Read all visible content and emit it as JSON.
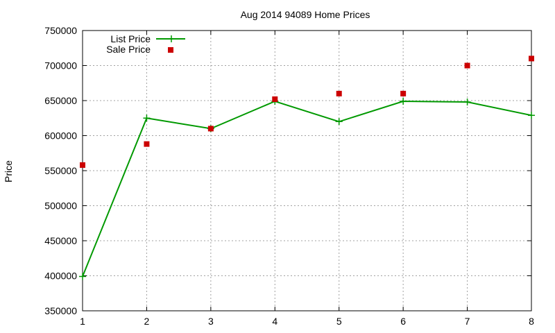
{
  "chart_data": {
    "type": "line",
    "title": "Aug 2014 94089 Home Prices",
    "xlabel": "",
    "ylabel": "Price",
    "x": [
      1,
      2,
      3,
      4,
      5,
      6,
      7,
      8
    ],
    "xlim": [
      1,
      8
    ],
    "ylim": [
      350000,
      750000
    ],
    "xticks": [
      "1",
      "2",
      "3",
      "4",
      "5",
      "6",
      "7",
      "8"
    ],
    "yticks": [
      "350000",
      "400000",
      "450000",
      "500000",
      "550000",
      "600000",
      "650000",
      "700000",
      "750000"
    ],
    "grid": true,
    "legend_position": "top-left",
    "series": [
      {
        "name": "List Price",
        "style": "line-with-plus-markers",
        "color": "#009900",
        "values": [
          399000,
          625000,
          610000,
          649000,
          620000,
          649000,
          648000,
          629000
        ]
      },
      {
        "name": "Sale Price",
        "style": "square-markers",
        "color": "#cc0000",
        "values": [
          558000,
          588000,
          610000,
          652000,
          660000,
          660000,
          700000,
          710000
        ]
      }
    ]
  }
}
